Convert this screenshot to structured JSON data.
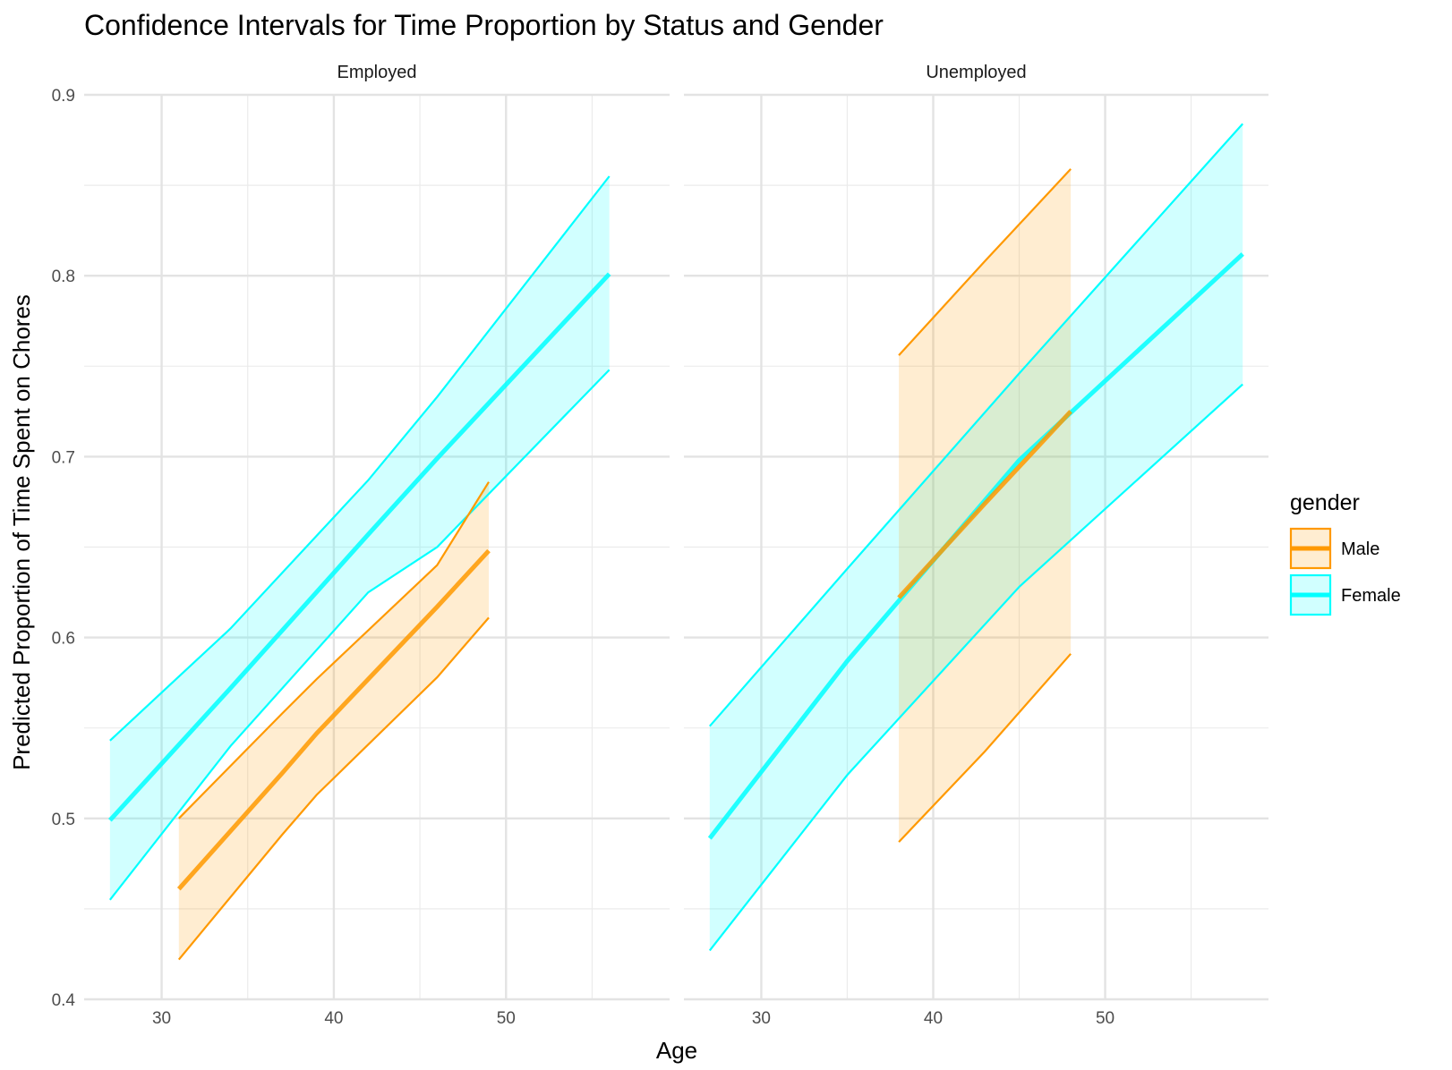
{
  "chart_data": {
    "type": "line",
    "title": "Confidence Intervals for Time Proportion by Status and Gender",
    "xlabel": "Age",
    "ylabel": "Predicted Proportion of Time Spent on Chores",
    "xlim": [
      25.5,
      59.5
    ],
    "ylim": [
      0.4,
      0.9
    ],
    "x_ticks": [
      30,
      40,
      50
    ],
    "y_ticks": [
      0.4,
      0.5,
      0.6,
      0.7,
      0.8,
      0.9
    ],
    "y_tick_labels": [
      "0.4",
      "0.5",
      "0.6",
      "0.7",
      "0.8",
      "0.9"
    ],
    "grid": true,
    "legend": {
      "title": "gender",
      "position": "right",
      "entries": [
        {
          "label": "Male",
          "color": "#FF9900"
        },
        {
          "label": "Female",
          "color": "#00FFFF"
        }
      ]
    },
    "colors": {
      "Male": "#FF9900",
      "Female": "#00FFFF"
    },
    "panels": [
      {
        "label": "Employed",
        "series": [
          {
            "name": "Female",
            "x": [
              27,
              34,
              42,
              46,
              56
            ],
            "fit": [
              0.499,
              0.572,
              0.657,
              0.699,
              0.801
            ],
            "lower": [
              0.455,
              0.54,
              0.625,
              0.65,
              0.748
            ],
            "upper": [
              0.543,
              0.605,
              0.687,
              0.733,
              0.855
            ]
          },
          {
            "name": "Male",
            "x": [
              31,
              37,
              39,
              46,
              49
            ],
            "fit": [
              0.461,
              0.525,
              0.547,
              0.617,
              0.648
            ],
            "lower": [
              0.422,
              0.491,
              0.513,
              0.578,
              0.611
            ],
            "upper": [
              0.5,
              0.558,
              0.577,
              0.64,
              0.686
            ]
          }
        ]
      },
      {
        "label": "Unemployed",
        "series": [
          {
            "name": "Female",
            "x": [
              27,
              35,
              45,
              58
            ],
            "fit": [
              0.489,
              0.587,
              0.698,
              0.812
            ],
            "lower": [
              0.427,
              0.524,
              0.628,
              0.74
            ],
            "upper": [
              0.551,
              0.638,
              0.746,
              0.884
            ]
          },
          {
            "name": "Male",
            "x": [
              38,
              43,
              48
            ],
            "fit": [
              0.622,
              0.674,
              0.725
            ],
            "lower": [
              0.487,
              0.537,
              0.591
            ],
            "upper": [
              0.756,
              0.808,
              0.859
            ]
          }
        ]
      }
    ]
  }
}
